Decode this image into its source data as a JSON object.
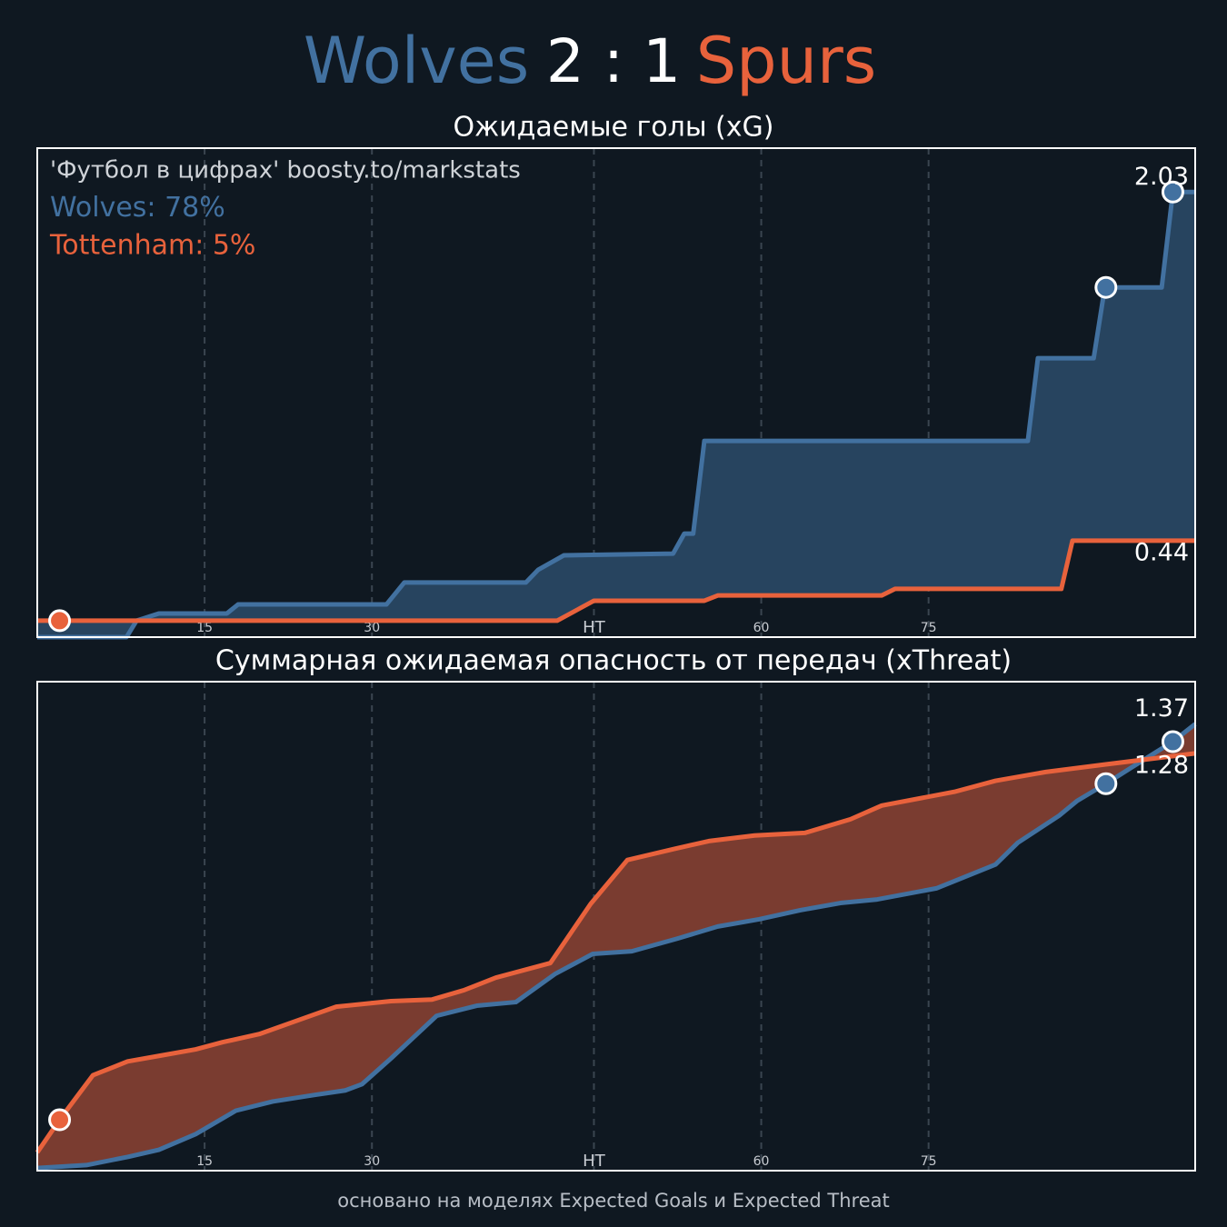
{
  "header": {
    "home": "Wolves",
    "score": "2 : 1",
    "away": "Spurs",
    "home_color": "#4271a0",
    "away_color": "#e8623c"
  },
  "footer": "основано на моделях Expected Goals и Expected Threat",
  "chart_data": [
    {
      "type": "line",
      "title": "Ожидаемые голы (xG)",
      "annotations": [
        {
          "text": "'Футбол в цифрах' boosty.to/markstats",
          "color": "#cfd3d8"
        },
        {
          "text": "Wolves: 78%",
          "color": "#4271a0"
        },
        {
          "text": "Tottenham: 5%",
          "color": "#e8623c"
        }
      ],
      "xlim": [
        0,
        103.8
      ],
      "ylim": [
        0,
        2.23
      ],
      "xticks": [
        15,
        30,
        {
          "value": 49.9,
          "label": "HT"
        },
        {
          "value": 64.9,
          "label": "60"
        },
        {
          "value": 79.9,
          "label": "75"
        }
      ],
      "grid": true,
      "fill_color": "#27445f",
      "series": [
        {
          "color": "#4271a0",
          "x": [
            0,
            8.0,
            8.9,
            10.9,
            17.0,
            18.0,
            31.3,
            32.9,
            43.8,
            44.9,
            47.2,
            57.0,
            58.0,
            58.8,
            59.8,
            88.8,
            89.7,
            94.7,
            95.7,
            100.8,
            101.8,
            103.8
          ],
          "values": [
            0,
            0,
            0.075,
            0.108,
            0.108,
            0.149,
            0.149,
            0.249,
            0.249,
            0.307,
            0.373,
            0.381,
            0.472,
            0.472,
            0.895,
            0.895,
            1.272,
            1.272,
            1.595,
            1.595,
            2.03,
            2.03
          ],
          "goals": {
            "x": [
              95.8,
              101.8
            ],
            "values": [
              1.595,
              2.03
            ]
          }
        },
        {
          "color": "#e8623c",
          "x": [
            0,
            46.6,
            49.9,
            59.8,
            61.0,
            75.7,
            76.9,
            91.8,
            92.8,
            103.8
          ],
          "values": [
            0.075,
            0.075,
            0.166,
            0.166,
            0.19,
            0.19,
            0.22,
            0.22,
            0.44,
            0.44
          ],
          "goals": {
            "x": [
              2.0
            ],
            "values": [
              0.075
            ]
          }
        }
      ]
    },
    {
      "type": "line",
      "title": "Суммарная ожидаемая опасность от передач (xThreat)",
      "xlim": [
        0,
        103.8
      ],
      "ylim": [
        0,
        1.5
      ],
      "xticks": [
        15,
        30,
        {
          "value": 49.9,
          "label": "HT"
        },
        {
          "value": 64.9,
          "label": "60"
        },
        {
          "value": 79.9,
          "label": "75"
        }
      ],
      "grid": true,
      "fill_color": "#7a3c30",
      "series": [
        {
          "color": "#4271a0",
          "x": [
            0,
            4.4,
            8.1,
            10.9,
            14.2,
            17.8,
            21.1,
            24.8,
            27.6,
            29.1,
            31.7,
            35.8,
            39.4,
            42.9,
            46.4,
            49.8,
            53.3,
            57.4,
            61.0,
            64.7,
            68.4,
            72.0,
            75.3,
            80.6,
            85.9,
            87.9,
            91.6,
            93.2,
            95.8,
            98.1,
            101.8,
            103.8
          ],
          "values": [
            0.008,
            0.017,
            0.042,
            0.064,
            0.112,
            0.184,
            0.212,
            0.232,
            0.246,
            0.265,
            0.344,
            0.475,
            0.506,
            0.517,
            0.603,
            0.665,
            0.673,
            0.712,
            0.749,
            0.771,
            0.799,
            0.821,
            0.832,
            0.866,
            0.939,
            1.006,
            1.089,
            1.134,
            1.187,
            1.237,
            1.316,
            1.37
          ],
          "goals": {
            "x": [
              95.8,
              101.8
            ],
            "values": [
              1.187,
              1.316
            ]
          }
        },
        {
          "color": "#e8623c",
          "x": [
            0,
            2.0,
            5.0,
            8.1,
            10.9,
            14.2,
            16.6,
            19.9,
            23.6,
            26.8,
            31.7,
            35.4,
            38.2,
            41.1,
            46.0,
            49.6,
            52.9,
            57.0,
            60.2,
            64.3,
            68.8,
            72.9,
            75.7,
            82.2,
            85.9,
            90.4,
            95.7,
            103.8
          ],
          "values": [
            0.056,
            0.156,
            0.293,
            0.335,
            0.352,
            0.372,
            0.394,
            0.419,
            0.464,
            0.503,
            0.52,
            0.525,
            0.553,
            0.592,
            0.637,
            0.818,
            0.953,
            0.986,
            1.011,
            1.028,
            1.036,
            1.078,
            1.12,
            1.162,
            1.196,
            1.223,
            1.246,
            1.28
          ],
          "goals": {
            "x": [
              2.0
            ],
            "values": [
              0.156
            ]
          }
        }
      ]
    }
  ]
}
